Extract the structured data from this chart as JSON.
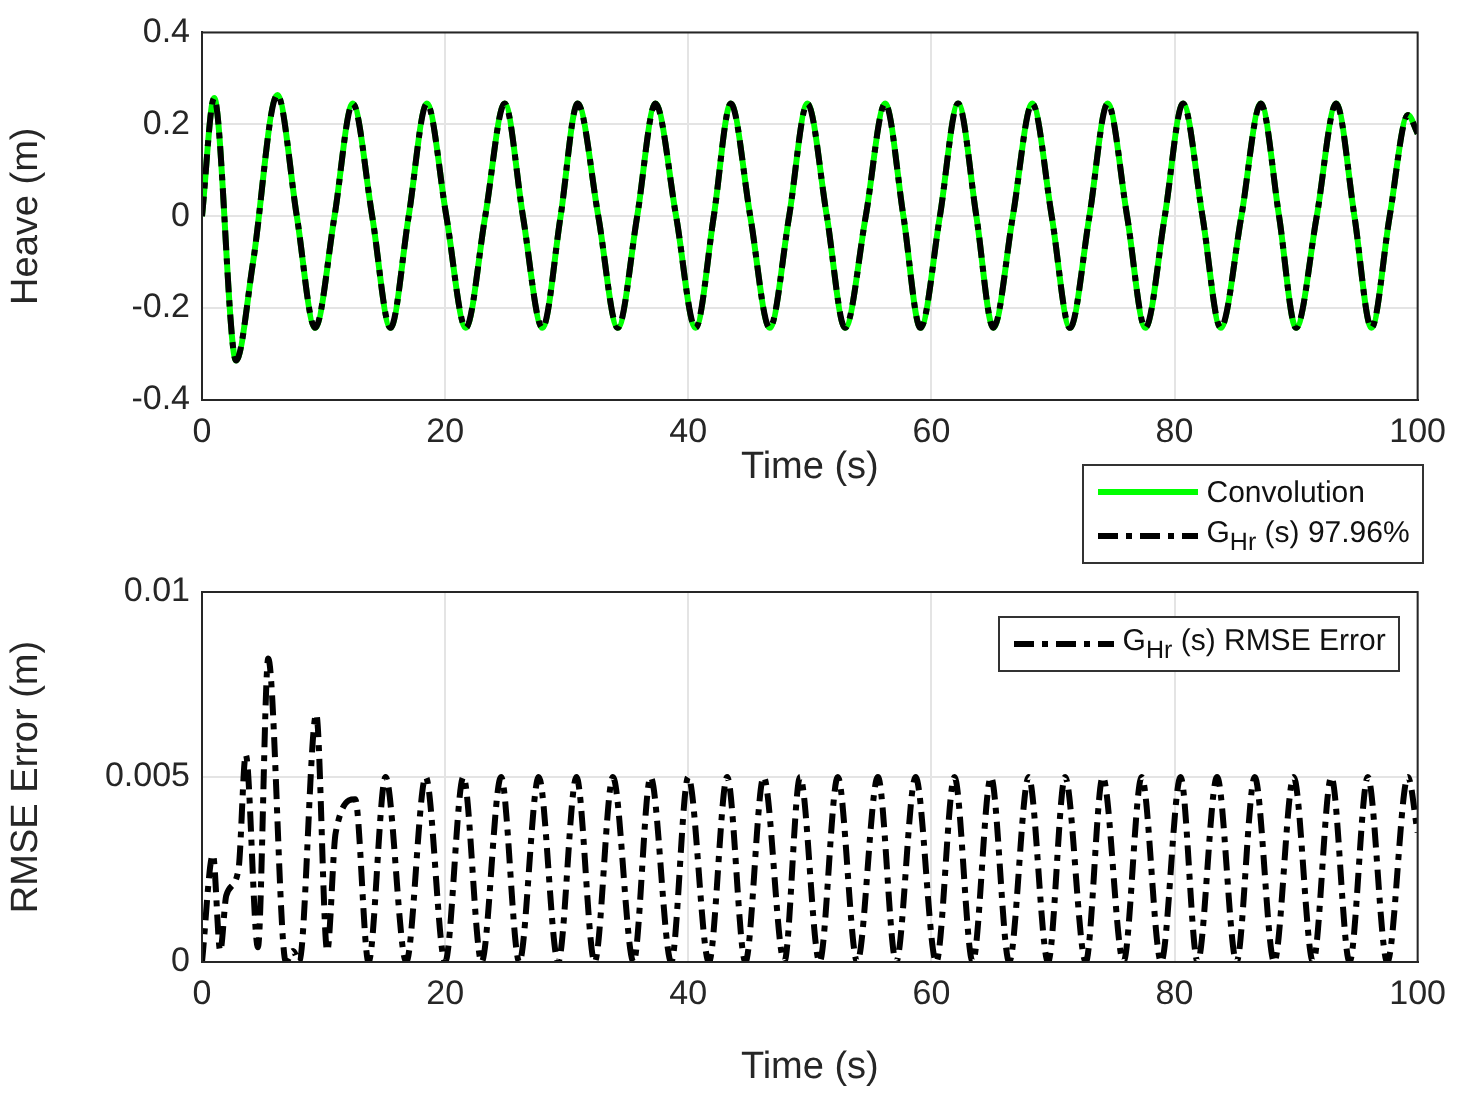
{
  "chart_data": [
    {
      "type": "line",
      "xlabel": "Time (s)",
      "ylabel": "Heave (m)",
      "xlim": [
        0,
        100
      ],
      "ylim": [
        -0.4,
        0.4
      ],
      "xticks": [
        0,
        20,
        40,
        60,
        80,
        100
      ],
      "yticks": [
        -0.4,
        -0.2,
        0,
        0.2,
        0.4
      ],
      "grid": true,
      "legend": "bottom right",
      "x": [
        0,
        1.0,
        2.8,
        4.2,
        6.2,
        7.8,
        9.3,
        10.9,
        12.4,
        14.0,
        15.5,
        17.0,
        18.5,
        20.1,
        21.7,
        23.3,
        24.9,
        26.4,
        28.0,
        29.5,
        30.9,
        32.6,
        34.2,
        35.8,
        37.3,
        39.0,
        40.6,
        42.1,
        43.5,
        45.1,
        46.7,
        48.3,
        49.8,
        51.4,
        52.9,
        54.6,
        56.2,
        57.7,
        59.1,
        60.7,
        62.2,
        63.7,
        65.1,
        66.7,
        68.3,
        69.9,
        71.4,
        73.0,
        74.5,
        76.1,
        77.6,
        79.2,
        80.7,
        82.3,
        83.8,
        85.5,
        87.1,
        88.6,
        90.0,
        91.7,
        93.3,
        94.8,
        96.2,
        97.7,
        99.2,
        100
      ],
      "series": [
        {
          "name": "Convolution",
          "color": "#00ff00",
          "line_style": "solid",
          "values": [
            0,
            0.257,
            -0.314,
            -0.1,
            0.264,
            0,
            -0.243,
            0,
            0.245,
            0,
            -0.243,
            0,
            0.245,
            0,
            -0.243,
            0,
            0.245,
            0,
            -0.243,
            0,
            0.245,
            0,
            -0.243,
            0,
            0.245,
            0,
            -0.243,
            0,
            0.245,
            0,
            -0.243,
            0,
            0.245,
            0,
            -0.243,
            0,
            0.245,
            0,
            -0.243,
            0,
            0.245,
            0,
            -0.243,
            0,
            0.245,
            0,
            -0.243,
            0,
            0.245,
            0,
            -0.243,
            0,
            0.245,
            0,
            -0.243,
            0,
            0.245,
            0,
            -0.243,
            0,
            0.245,
            0,
            -0.243,
            0,
            0.22,
            0.18
          ]
        },
        {
          "name": "G$_{Hr}$ (s) 97.96%",
          "color": "#000000",
          "line_style": "dashed",
          "values": [
            0,
            0.257,
            -0.314,
            -0.1,
            0.264,
            0,
            -0.243,
            0,
            0.245,
            0,
            -0.243,
            0,
            0.245,
            0,
            -0.243,
            0,
            0.245,
            0,
            -0.243,
            0,
            0.245,
            0,
            -0.243,
            0,
            0.245,
            0,
            -0.243,
            0,
            0.245,
            0,
            -0.243,
            0,
            0.245,
            0,
            -0.243,
            0,
            0.245,
            0,
            -0.243,
            0,
            0.245,
            0,
            -0.243,
            0,
            0.245,
            0,
            -0.243,
            0,
            0.245,
            0,
            -0.243,
            0,
            0.245,
            0,
            -0.243,
            0,
            0.245,
            0,
            -0.243,
            0,
            0.245,
            0,
            -0.243,
            0,
            0.22,
            0.18
          ]
        }
      ]
    },
    {
      "type": "line",
      "xlabel": "Time (s)",
      "ylabel": "RMSE Error (m)",
      "xlim": [
        0,
        100
      ],
      "ylim": [
        0,
        0.01
      ],
      "xticks": [
        0,
        20,
        40,
        60,
        80,
        100
      ],
      "yticks": [
        0,
        0.005,
        0.01
      ],
      "grid": true,
      "legend": "top right",
      "x": [
        0,
        0.9,
        1.5,
        2.0,
        3.0,
        3.6,
        4.6,
        5.45,
        6.9,
        7.5,
        8.0,
        9.4,
        10.3,
        11.0,
        12.6,
        13.7,
        15.1,
        16.8,
        18.4,
        20.0,
        21.5,
        23.0,
        24.6,
        26.1,
        27.7,
        29.3,
        30.8,
        32.3,
        33.8,
        35.5,
        36.9,
        38.6,
        40.0,
        41.7,
        43.2,
        44.7,
        46.2,
        47.9,
        49.2,
        50.8,
        52.3,
        53.9,
        55.6,
        57.1,
        58.7,
        60.4,
        61.9,
        63.4,
        64.9,
        66.4,
        68.0,
        69.6,
        71.0,
        72.7,
        74.1,
        75.8,
        77.3,
        78.9,
        80.5,
        81.9,
        83.5,
        85.1,
        86.6,
        88.2,
        89.8,
        91.4,
        92.9,
        94.4,
        95.9,
        97.5,
        99.2,
        100
      ],
      "series": [
        {
          "name": "G$_{Hr}$ (s) RMSE Error",
          "color": "#000000",
          "line_style": "dashed",
          "values": [
            0,
            0.0029,
            0.0003,
            0.0018,
            0.0025,
            0.0056,
            0.0004,
            0.0082,
            0,
            0.0003,
            0,
            0.0067,
            0.0003,
            0.0035,
            0.0044,
            0,
            0.005,
            0,
            0.005,
            0,
            0.005,
            0,
            0.005,
            0,
            0.005,
            0,
            0.005,
            0,
            0.005,
            0,
            0.005,
            0,
            0.005,
            0,
            0.005,
            0,
            0.005,
            0,
            0.005,
            0,
            0.005,
            0,
            0.005,
            0,
            0.005,
            0,
            0.005,
            0,
            0.005,
            0,
            0.005,
            0,
            0.005,
            0,
            0.005,
            0,
            0.005,
            0,
            0.005,
            0,
            0.005,
            0,
            0.005,
            0,
            0.005,
            0,
            0.005,
            0,
            0.005,
            0,
            0.005,
            0.0035
          ]
        }
      ]
    }
  ]
}
